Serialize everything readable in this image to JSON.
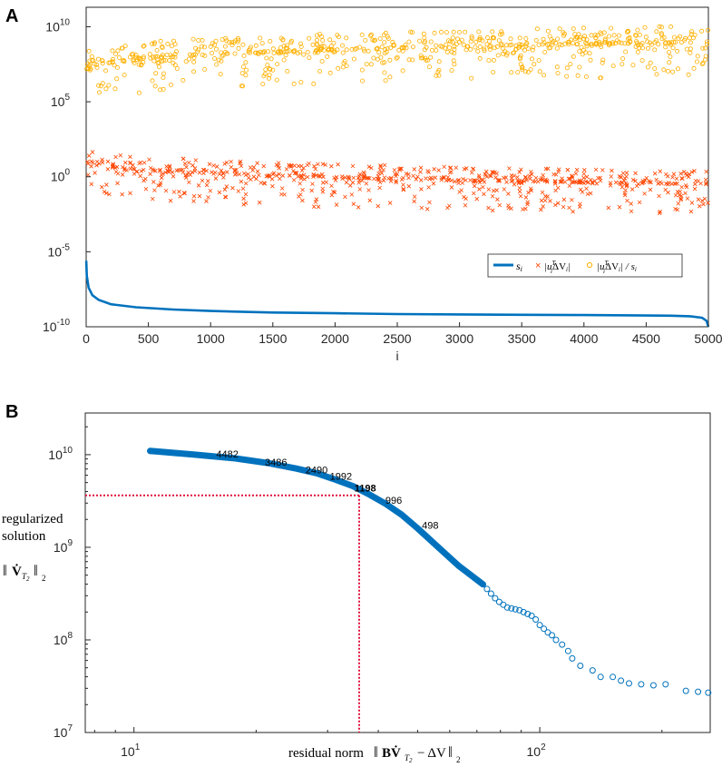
{
  "colors": {
    "singular": "#0072BD",
    "coeff": "#FF4500",
    "ratio": "#FFB000",
    "lcurve": "#0072BD",
    "highlight": "#E0103C",
    "axis": "#262626"
  },
  "chart_data": [
    {
      "panel": "A",
      "type": "scatter",
      "xlabel": "i",
      "xlim": [
        0,
        5000
      ],
      "ylim_log10": [
        -10,
        11.3
      ],
      "xticks": [
        "0",
        "500",
        "1000",
        "1500",
        "2000",
        "2500",
        "3000",
        "3500",
        "4000",
        "4500",
        "5000"
      ],
      "yticks": [
        {
          "base": "10",
          "exp": "-10"
        },
        {
          "base": "10",
          "exp": "-5"
        },
        {
          "base": "10",
          "exp": "0"
        },
        {
          "base": "10",
          "exp": "5"
        },
        {
          "base": "10",
          "exp": "10"
        }
      ],
      "legend": [
        "s_i",
        "|u_i^T ΔV_i|",
        "|u_i^T ΔV_i| / s_i"
      ],
      "legend_loc": "lower-right",
      "series": [
        {
          "name": "s_i",
          "style": "line",
          "x": [
            1,
            5,
            20,
            50,
            100,
            200,
            400,
            700,
            1000,
            1500,
            2000,
            2500,
            3000,
            3500,
            4000,
            4500,
            4700,
            4850,
            4950,
            4985,
            5000
          ],
          "log10_y": [
            -5.6,
            -6.6,
            -7.4,
            -7.9,
            -8.2,
            -8.5,
            -8.7,
            -8.85,
            -8.95,
            -9.05,
            -9.1,
            -9.15,
            -9.18,
            -9.2,
            -9.22,
            -9.25,
            -9.26,
            -9.3,
            -9.4,
            -9.6,
            -10
          ]
        },
        {
          "name": "|u_i^T ΔV_i|",
          "style": "x-markers",
          "count": 5000,
          "log10_start": 1.2,
          "log10_end": -0.5,
          "log10_spread_up": 0.9,
          "log10_spread_down": 2.0
        },
        {
          "name": "|u_i^T ΔV_i| / s_i",
          "style": "o-markers",
          "count": 5000,
          "log10_start": 7.0,
          "log10_end": 9.0,
          "log10_spread_up": 1.1,
          "log10_spread_down": 2.3
        }
      ]
    },
    {
      "panel": "B",
      "type": "line",
      "scale": "log-log",
      "xlabel_text": "residual norm",
      "ylabel_lines": [
        "regularized",
        "solution"
      ],
      "xlim_log10": [
        0.88,
        2.42
      ],
      "ylim_log10": [
        7,
        10.45
      ],
      "xticks": [
        {
          "base": "10",
          "exp": "1",
          "log10": 1
        },
        {
          "base": "10",
          "exp": "2",
          "log10": 2
        }
      ],
      "yticks": [
        {
          "base": "10",
          "exp": "7",
          "log10": 7
        },
        {
          "base": "10",
          "exp": "8",
          "log10": 8
        },
        {
          "base": "10",
          "exp": "9",
          "log10": 9
        },
        {
          "base": "10",
          "exp": "10",
          "log10": 10
        }
      ],
      "curve_log10": {
        "x": [
          1.04,
          1.15,
          1.25,
          1.33,
          1.4,
          1.45,
          1.49,
          1.54,
          1.58,
          1.62,
          1.66,
          1.7,
          1.75,
          1.8,
          1.86
        ],
        "y": [
          10.04,
          10.0,
          9.96,
          9.91,
          9.85,
          9.8,
          9.74,
          9.66,
          9.57,
          9.47,
          9.35,
          9.2,
          9.0,
          8.8,
          8.6
        ]
      },
      "sparse_points_log10": {
        "x": [
          1.87,
          1.88,
          1.89,
          1.9,
          1.91,
          1.92,
          1.93,
          1.94,
          1.95,
          1.96,
          1.97,
          1.98,
          1.99,
          2.0,
          2.01,
          2.02,
          2.03,
          2.04,
          2.055,
          2.07,
          2.08,
          2.1,
          2.13,
          2.15,
          2.18,
          2.2,
          2.22,
          2.25,
          2.28,
          2.31,
          2.36,
          2.39,
          2.415
        ],
        "y": [
          8.55,
          8.5,
          8.45,
          8.41,
          8.38,
          8.35,
          8.34,
          8.33,
          8.32,
          8.3,
          8.28,
          8.26,
          8.22,
          8.16,
          8.12,
          8.08,
          8.05,
          8.0,
          7.95,
          7.88,
          7.8,
          7.72,
          7.67,
          7.6,
          7.6,
          7.56,
          7.53,
          7.52,
          7.51,
          7.52,
          7.45,
          7.44,
          7.43
        ]
      },
      "labels": [
        {
          "text": "4482",
          "lx": 1.23,
          "ly": 9.97
        },
        {
          "text": "3486",
          "lx": 1.35,
          "ly": 9.88
        },
        {
          "text": "2490",
          "lx": 1.45,
          "ly": 9.8
        },
        {
          "text": "1992",
          "lx": 1.51,
          "ly": 9.73
        },
        {
          "text": "1198",
          "lx": 1.57,
          "ly": 9.6,
          "highlight": true
        },
        {
          "text": "996",
          "lx": 1.64,
          "ly": 9.47
        },
        {
          "text": "498",
          "lx": 1.73,
          "ly": 9.2
        }
      ],
      "corner": {
        "lx": 1.555,
        "ly": 9.56
      }
    }
  ]
}
